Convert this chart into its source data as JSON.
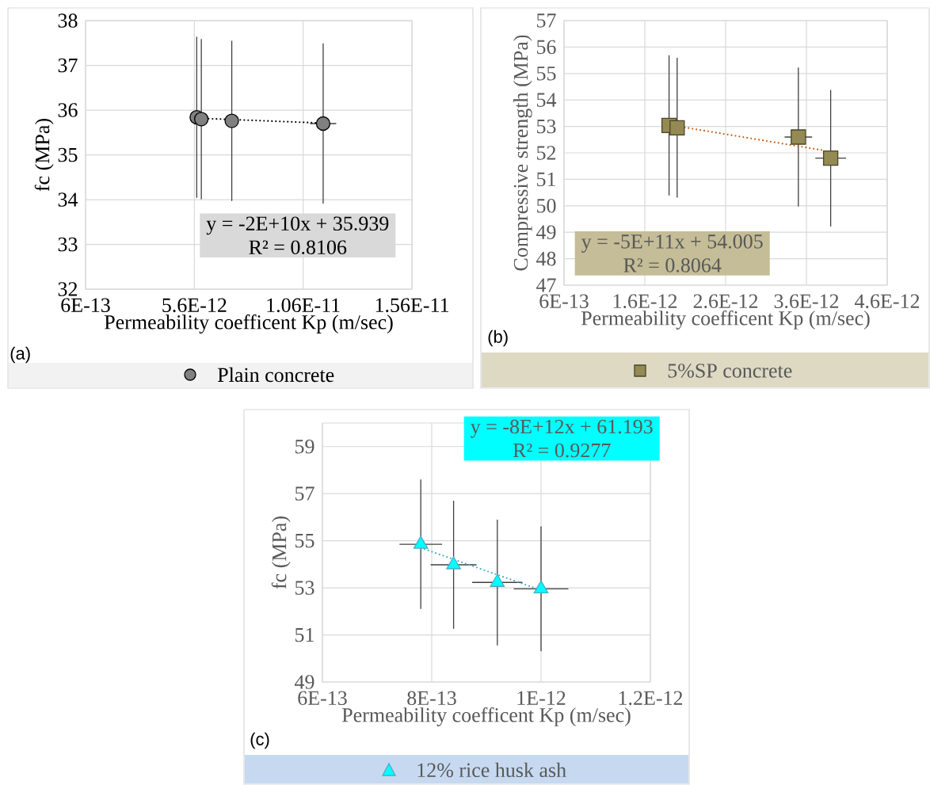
{
  "chart_data": [
    {
      "type": "scatter",
      "xlabel": "Permeability coefficent Kp (m/sec)",
      "ylabel": "fc (MPa)",
      "annotations": [
        "(a)",
        "y = -2E+10x + 35.939",
        "R² = 0.8106"
      ],
      "series": [
        {
          "name": "Plain concrete",
          "type": "scatter",
          "color": "#808080",
          "marker": "circle",
          "x": [
            5.71e-12,
            5.92e-12,
            7.32e-12,
            1.152e-11
          ],
          "values": [
            35.84,
            35.8,
            35.76,
            35.7
          ],
          "errors": [
            1.8,
            1.79,
            1.79,
            1.79
          ],
          "xerrors": [
            null,
            null,
            2e-13,
            6e-13
          ]
        },
        {
          "type": "line",
          "color": "#000000",
          "line_style": "dotted",
          "x": [
            5.71e-12,
            1.152e-11
          ],
          "values": [
            35.82,
            35.71
          ]
        }
      ],
      "xlim": [
        6e-13,
        1.56e-11
      ],
      "xticks": [
        {
          "value": 6e-13,
          "label": "6E-13"
        },
        {
          "value": 5.6e-12,
          "label": "5.6E-12"
        },
        {
          "value": 1.06e-11,
          "label": "1.06E-11"
        },
        {
          "value": 1.56e-11,
          "label": "1.56E-11"
        }
      ],
      "ylim": [
        32,
        38
      ],
      "yticks": [
        32,
        33,
        34,
        35,
        36,
        37,
        38
      ],
      "grid": true,
      "legend": "bottom"
    },
    {
      "type": "scatter",
      "xlabel": "Permeability coefficent Kp (m/sec)",
      "ylabel": "Compressive strength (MPa)",
      "annotations": [
        "(b)",
        "y = -5E+11x + 54.005",
        "R² = 0.8064"
      ],
      "series": [
        {
          "name": "5%SP concrete",
          "type": "scatter",
          "color": "#948a54",
          "marker": "square",
          "x": [
            1.9e-12,
            2e-12,
            3.5e-12,
            3.9e-12
          ],
          "values": [
            53.04,
            52.95,
            52.6,
            51.8
          ],
          "errors": [
            2.65,
            2.64,
            2.63,
            2.58
          ],
          "xerrors": [
            null,
            null,
            1.7e-13,
            1.9e-13
          ]
        },
        {
          "type": "line",
          "color": "#c55a11",
          "line_style": "dotted",
          "x": [
            1.9e-12,
            3.8e-12
          ],
          "values": [
            53.06,
            52.1
          ]
        }
      ],
      "xlim": [
        6e-13,
        4.6e-12
      ],
      "xticks": [
        {
          "value": 6e-13,
          "label": "6E-13"
        },
        {
          "value": 1.6e-12,
          "label": "1.6E-12"
        },
        {
          "value": 2.6e-12,
          "label": "2.6E-12"
        },
        {
          "value": 3.6e-12,
          "label": "3.6E-12"
        },
        {
          "value": 4.6e-12,
          "label": "4.6E-12"
        }
      ],
      "ylim": [
        47,
        57
      ],
      "yticks": [
        47,
        48,
        49,
        50,
        51,
        52,
        53,
        54,
        55,
        56,
        57
      ],
      "grid": true,
      "legend": "bottom"
    },
    {
      "type": "scatter",
      "xlabel": "Permeability coefficent Kp (m/sec)",
      "ylabel": "fc (MPa)",
      "annotations": [
        "(c)",
        "y = -8E+12x + 61.193",
        "R² = 0.9277"
      ],
      "series": [
        {
          "name": "12% rice husk ash",
          "type": "scatter",
          "color": "#00ffff",
          "marker": "triangle",
          "x": [
            7.8e-13,
            8.4e-13,
            9.2e-13,
            1e-12
          ],
          "values": [
            54.85,
            53.98,
            53.23,
            52.96
          ],
          "errors": [
            2.75,
            2.72,
            2.67,
            2.65
          ],
          "xerrors": [
            3.9e-14,
            4.2e-14,
            4.6e-14,
            5e-14
          ]
        },
        {
          "type": "line",
          "color": "#4bacc6",
          "line_style": "dotted",
          "x": [
            7.8e-13,
            1e-12
          ],
          "values": [
            54.7,
            52.9
          ]
        }
      ],
      "xlim": [
        6e-13,
        1.2e-12
      ],
      "xticks": [
        {
          "value": 6e-13,
          "label": "6E-13"
        },
        {
          "value": 8e-13,
          "label": "8E-13"
        },
        {
          "value": 1e-12,
          "label": "1E-12"
        },
        {
          "value": 1.2e-12,
          "label": "1.2E-12"
        }
      ],
      "ylim": [
        49,
        60
      ],
      "yticks": [
        49,
        51,
        53,
        55,
        57,
        59
      ],
      "grid": true,
      "legend": "bottom"
    }
  ]
}
